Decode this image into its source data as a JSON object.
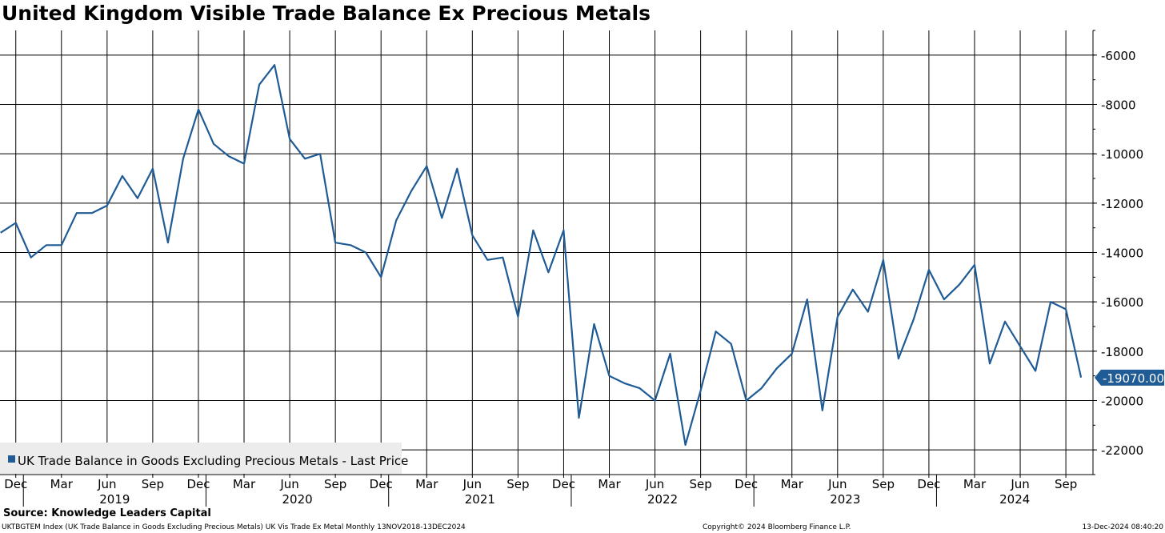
{
  "header": {
    "title": "United Kingdom Visible Trade Balance Ex Precious Metals"
  },
  "footer": {
    "source": "Source: Knowledge Leaders Capital",
    "ticker_info": "UKTBGTEM Index (UK Trade Balance in Goods Excluding Precious Metals) UK Vis Trade Ex Metal  Monthly 13NOV2018-13DEC2024",
    "copyright": "Copyright© 2024 Bloomberg Finance L.P.",
    "timestamp": "13-Dec-2024 08:40:20"
  },
  "colors": {
    "series": "#1f5b95",
    "grid": "#000000",
    "label_bg": "#1f5b95"
  },
  "chart_data": {
    "type": "line",
    "title": "United Kingdom Visible Trade Balance Ex Precious Metals",
    "xlabel": "",
    "ylabel": "",
    "ylim": [
      -23000,
      -5000
    ],
    "y_ticks": [
      -6000,
      -8000,
      -10000,
      -12000,
      -14000,
      -16000,
      -18000,
      -20000,
      -22000
    ],
    "y_axis_side": "right",
    "grid": true,
    "month_ticks": [
      "Dec",
      "Mar",
      "Jun",
      "Sep",
      "Dec",
      "Mar",
      "Jun",
      "Sep",
      "Dec",
      "Mar",
      "Jun",
      "Sep",
      "Dec",
      "Mar",
      "Jun",
      "Sep",
      "Dec",
      "Mar",
      "Jun",
      "Sep",
      "Dec",
      "Mar",
      "Jun",
      "Sep"
    ],
    "year_labels": [
      "2019",
      "2020",
      "2021",
      "2022",
      "2023",
      "2024"
    ],
    "legend": {
      "label": "UK Trade Balance in Goods Excluding Precious Metals - Last Price",
      "position": "bottom-left"
    },
    "last_value_label": "-19070.00",
    "last_value": -19070,
    "series": [
      {
        "name": "UK Trade Balance in Goods Excluding Precious Metals - Last Price",
        "x": [
          "2018-11",
          "2018-12",
          "2019-01",
          "2019-02",
          "2019-03",
          "2019-04",
          "2019-05",
          "2019-06",
          "2019-07",
          "2019-08",
          "2019-09",
          "2019-10",
          "2019-11",
          "2019-12",
          "2020-01",
          "2020-02",
          "2020-03",
          "2020-04",
          "2020-05",
          "2020-06",
          "2020-07",
          "2020-08",
          "2020-09",
          "2020-10",
          "2020-11",
          "2020-12",
          "2021-01",
          "2021-02",
          "2021-03",
          "2021-04",
          "2021-05",
          "2021-06",
          "2021-07",
          "2021-08",
          "2021-09",
          "2021-10",
          "2021-11",
          "2021-12",
          "2022-01",
          "2022-02",
          "2022-03",
          "2022-04",
          "2022-05",
          "2022-06",
          "2022-07",
          "2022-08",
          "2022-09",
          "2022-10",
          "2022-11",
          "2022-12",
          "2023-01",
          "2023-02",
          "2023-03",
          "2023-04",
          "2023-05",
          "2023-06",
          "2023-07",
          "2023-08",
          "2023-09",
          "2023-10",
          "2023-11",
          "2023-12",
          "2024-01",
          "2024-02",
          "2024-03",
          "2024-04",
          "2024-05",
          "2024-06",
          "2024-07",
          "2024-08",
          "2024-09",
          "2024-10"
        ],
        "values": [
          -13200,
          -12800,
          -14200,
          -13700,
          -13700,
          -12400,
          -12400,
          -12100,
          -10900,
          -11800,
          -10600,
          -13600,
          -10200,
          -8200,
          -9600,
          -10100,
          -10400,
          -7200,
          -6400,
          -9400,
          -10200,
          -10000,
          -13600,
          -13700,
          -14000,
          -15000,
          -12700,
          -11500,
          -10500,
          -12600,
          -10600,
          -13300,
          -14300,
          -14200,
          -16600,
          -13100,
          -14800,
          -13100,
          -20700,
          -16900,
          -19000,
          -19300,
          -19500,
          -20000,
          -18100,
          -21800,
          -19600,
          -17200,
          -17700,
          -20000,
          -19500,
          -18700,
          -18100,
          -15900,
          -20400,
          -16600,
          -15500,
          -16400,
          -14300,
          -18300,
          -16700,
          -14700,
          -15900,
          -15300,
          -14500,
          -18500,
          -16800,
          -17800,
          -18800,
          -16000,
          -16300,
          -19070
        ]
      }
    ]
  }
}
